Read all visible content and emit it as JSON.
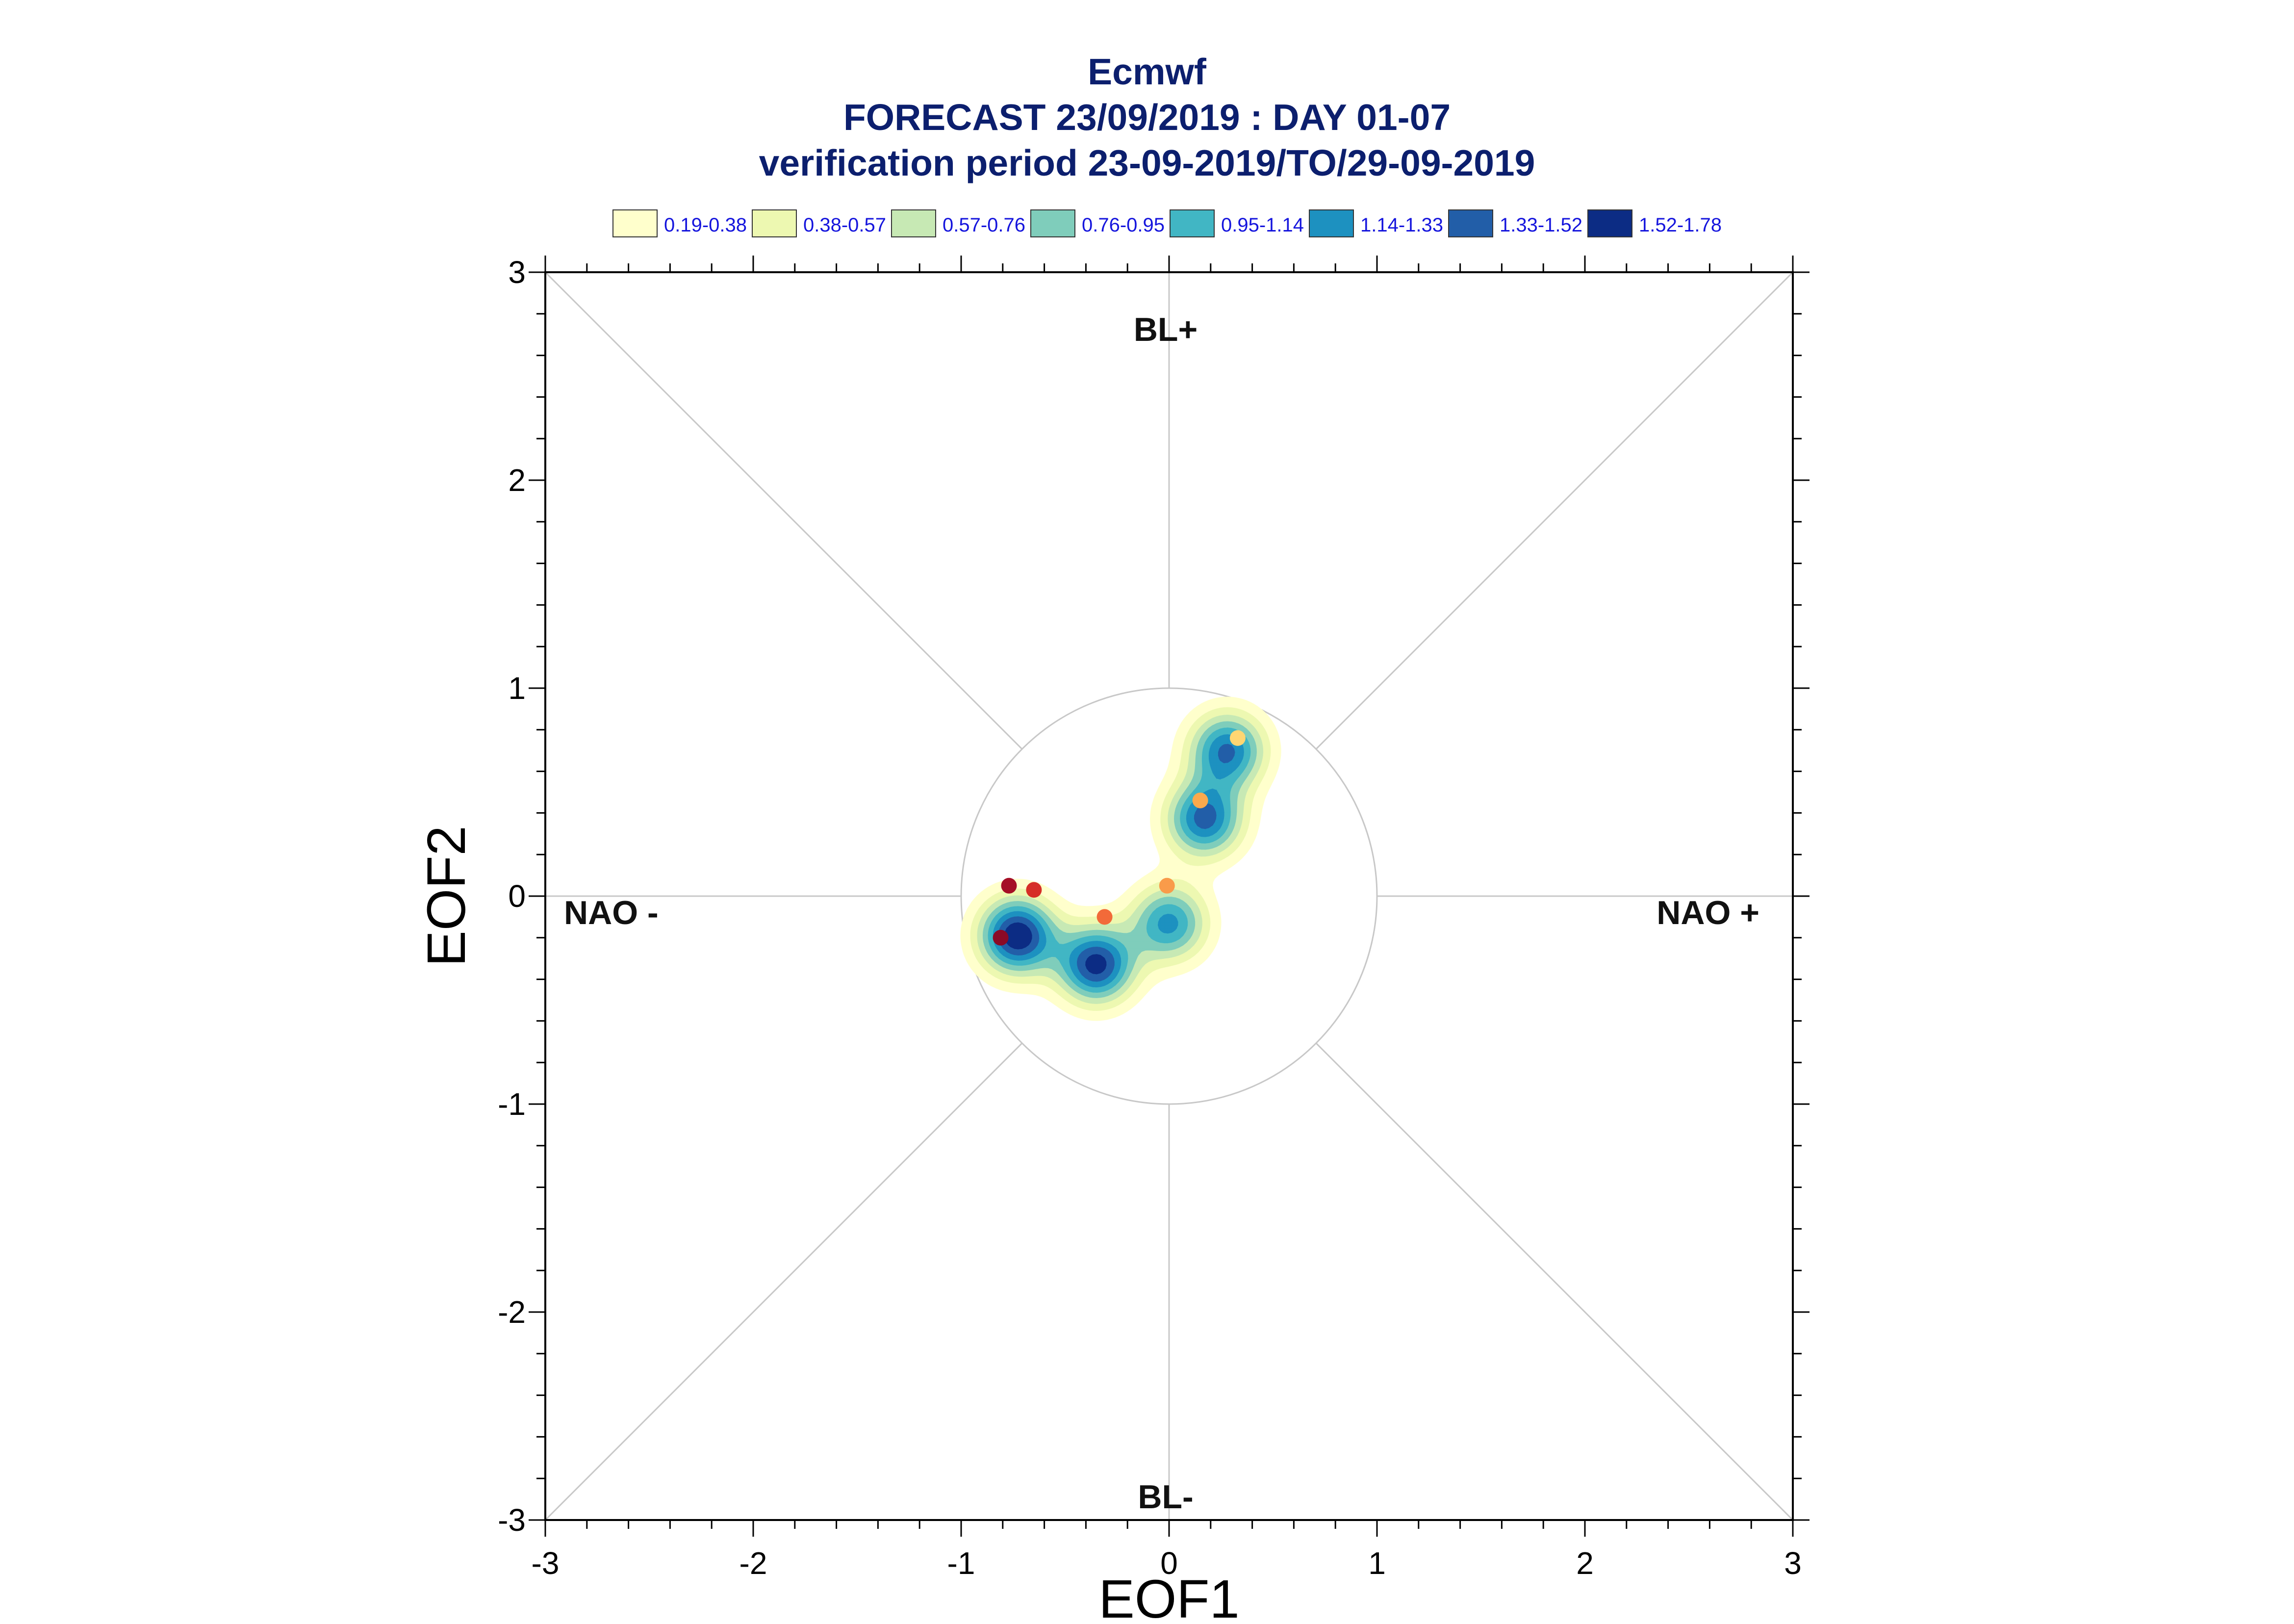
{
  "titles": {
    "line1": "Ecmwf",
    "line2": "FORECAST 23/09/2019 : DAY 01-07",
    "line3": "verification period 23-09-2019/TO/29-09-2019"
  },
  "colors": {
    "title": "#0c1f6e",
    "legend_text": "#1515dd",
    "axis": "#000000",
    "guide": "#c8c8c8"
  },
  "chart_data": {
    "type": "scatter",
    "xlabel": "EOF1",
    "ylabel": "EOF2",
    "xlim": [
      -3,
      3
    ],
    "ylim": [
      -3,
      3
    ],
    "xticks": [
      "-3",
      "-2",
      "-1",
      "0",
      "1",
      "2",
      "3"
    ],
    "yticks": [
      "-3",
      "-2",
      "-1",
      "0",
      "1",
      "2",
      "3"
    ],
    "regime_labels": {
      "top": "BL+",
      "bottom": "BL-",
      "left": "NAO -",
      "right": "NAO +"
    },
    "reference_circle_radius": 1,
    "legend": {
      "position": "top",
      "entries": [
        {
          "label": "0.19-0.38",
          "color": "#ffffcc"
        },
        {
          "label": "0.38-0.57",
          "color": "#edf8b1"
        },
        {
          "label": "0.57-0.76",
          "color": "#c7e9b4"
        },
        {
          "label": "0.76-0.95",
          "color": "#7fcdbb"
        },
        {
          "label": "0.95-1.14",
          "color": "#41b6c4"
        },
        {
          "label": "1.14-1.33",
          "color": "#1d91c0"
        },
        {
          "label": "1.33-1.52",
          "color": "#225ea8"
        },
        {
          "label": "1.52-1.78",
          "color": "#0c2c84"
        }
      ]
    },
    "density_levels": [
      0.19,
      0.38,
      0.57,
      0.76,
      0.95,
      1.14,
      1.33,
      1.52,
      1.78
    ],
    "density_peaks": [
      {
        "x": -0.73,
        "y": -0.19,
        "peak": 1.7
      },
      {
        "x": -0.35,
        "y": -0.33,
        "peak": 1.6
      },
      {
        "x": 0.0,
        "y": -0.13,
        "peak": 1.2
      },
      {
        "x": 0.17,
        "y": 0.37,
        "peak": 1.4
      },
      {
        "x": 0.28,
        "y": 0.7,
        "peak": 1.35
      }
    ],
    "points": [
      {
        "x": -0.81,
        "y": -0.2,
        "color": "#8b0a26"
      },
      {
        "x": -0.77,
        "y": 0.05,
        "color": "#a50f26"
      },
      {
        "x": -0.65,
        "y": 0.03,
        "color": "#d62f27"
      },
      {
        "x": -0.31,
        "y": -0.1,
        "color": "#f26a39"
      },
      {
        "x": -0.01,
        "y": 0.05,
        "color": "#f99b4a"
      },
      {
        "x": 0.15,
        "y": 0.46,
        "color": "#fba94d"
      },
      {
        "x": 0.33,
        "y": 0.76,
        "color": "#fed672"
      }
    ]
  }
}
